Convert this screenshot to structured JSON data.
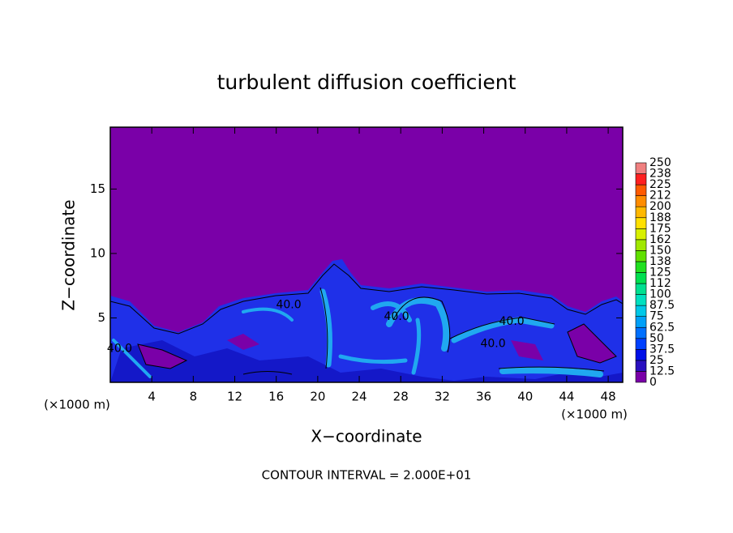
{
  "chart_data": {
    "type": "contour",
    "title": "turbulent diffusion coefficient",
    "xlabel": "X−coordinate",
    "ylabel": "Z−coordinate",
    "x_unit": "(×1000 m)",
    "y_unit": "(×1000 m)",
    "footnote": "CONTOUR INTERVAL = 2.000E+01",
    "xlim": [
      0,
      49.4
    ],
    "ylim": [
      0,
      19.8
    ],
    "xticks": [
      4,
      8,
      12,
      16,
      20,
      24,
      28,
      32,
      36,
      40,
      44,
      48
    ],
    "yticks": [
      5,
      10,
      15
    ],
    "colorbar": {
      "levels": [
        0,
        12.5,
        25,
        37.5,
        50,
        62.5,
        75,
        87.5,
        100,
        112,
        125,
        138,
        150,
        162,
        175,
        188,
        200,
        212,
        225,
        238,
        250
      ],
      "colors": [
        "#7a00a8",
        "#2a10c0",
        "#0010e8",
        "#0040ff",
        "#0070ff",
        "#00a0f8",
        "#00c8e8",
        "#00e0c0",
        "#00e090",
        "#00e050",
        "#20e020",
        "#60e000",
        "#a0e800",
        "#d8f000",
        "#ffe000",
        "#ffb800",
        "#ff8c00",
        "#ff5a00",
        "#ff2020",
        "#f08080"
      ]
    },
    "annotations": [
      {
        "text": "40.0",
        "x": 17.2,
        "y": 6.0
      },
      {
        "text": "40.0",
        "x": 27.6,
        "y": 5.1
      },
      {
        "text": "40.0",
        "x": 38.7,
        "y": 4.7
      },
      {
        "text": "40.0",
        "x": 36.9,
        "y": 3.0
      },
      {
        "text": "40.0",
        "x": 0.9,
        "y": 2.6
      }
    ]
  }
}
